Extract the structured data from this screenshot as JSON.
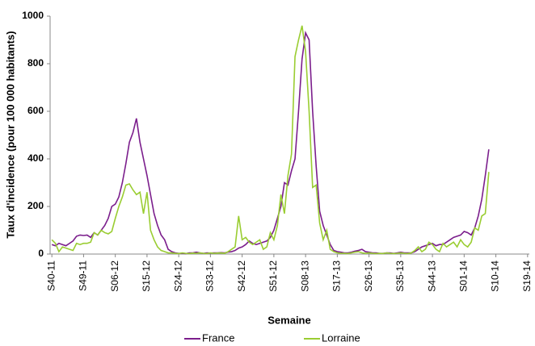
{
  "chart_data": {
    "type": "line",
    "x_label": "Semaine",
    "y_label": "Taux d'incidence (pour 100 000 habitants)",
    "categories": [
      "S40-11",
      null,
      null,
      null,
      null,
      null,
      null,
      null,
      null,
      "S49-11",
      null,
      null,
      null,
      null,
      null,
      null,
      null,
      null,
      "S06-12",
      null,
      null,
      null,
      null,
      null,
      null,
      null,
      null,
      "S15-12",
      null,
      null,
      null,
      null,
      null,
      null,
      null,
      null,
      "S24-12",
      null,
      null,
      null,
      null,
      null,
      null,
      null,
      null,
      "S33-12",
      null,
      null,
      null,
      null,
      null,
      null,
      null,
      null,
      "S42-12",
      null,
      null,
      null,
      null,
      null,
      null,
      null,
      null,
      "S51-12",
      null,
      null,
      null,
      null,
      null,
      null,
      null,
      null,
      "S08-13",
      null,
      null,
      null,
      null,
      null,
      null,
      null,
      null,
      "S17-13",
      null,
      null,
      null,
      null,
      null,
      null,
      null,
      null,
      "S26-13",
      null,
      null,
      null,
      null,
      null,
      null,
      null,
      null,
      "S35-13",
      null,
      null,
      null,
      null,
      null,
      null,
      null,
      null,
      "S44-13",
      null,
      null,
      null,
      null,
      null,
      null,
      null,
      null,
      "S01-14",
      null,
      null,
      null,
      null,
      null,
      null,
      null,
      null,
      "S10-14",
      null,
      null,
      null,
      null,
      null,
      null,
      null,
      null,
      "S19-14"
    ],
    "series": [
      {
        "name": "France",
        "color": "#7b1e8c",
        "values": [
          40,
          35,
          45,
          40,
          35,
          45,
          55,
          75,
          80,
          78,
          80,
          70,
          90,
          80,
          100,
          120,
          150,
          200,
          210,
          240,
          300,
          380,
          470,
          510,
          570,
          470,
          400,
          330,
          250,
          170,
          120,
          80,
          60,
          20,
          10,
          5,
          3,
          3,
          2,
          5,
          5,
          8,
          5,
          3,
          5,
          4,
          5,
          5,
          6,
          5,
          8,
          10,
          15,
          25,
          30,
          40,
          55,
          45,
          40,
          45,
          50,
          55,
          70,
          100,
          150,
          200,
          300,
          290,
          350,
          400,
          600,
          820,
          930,
          900,
          600,
          370,
          180,
          120,
          80,
          40,
          15,
          10,
          8,
          5,
          5,
          8,
          12,
          15,
          20,
          10,
          8,
          5,
          5,
          3,
          3,
          5,
          5,
          3,
          5,
          8,
          5,
          5,
          5,
          10,
          20,
          30,
          35,
          40,
          45,
          35,
          40,
          40,
          50,
          60,
          70,
          75,
          80,
          95,
          90,
          80,
          110,
          160,
          230,
          330,
          440,
          null,
          null,
          null,
          null,
          null,
          null,
          null,
          null,
          null,
          null,
          null
        ]
      },
      {
        "name": "Lorraine",
        "color": "#9acd32",
        "values": [
          60,
          45,
          10,
          30,
          25,
          20,
          15,
          45,
          40,
          45,
          45,
          50,
          90,
          80,
          100,
          90,
          85,
          95,
          150,
          200,
          240,
          290,
          295,
          270,
          250,
          260,
          170,
          260,
          100,
          60,
          30,
          15,
          10,
          5,
          5,
          3,
          2,
          5,
          3,
          2,
          4,
          3,
          5,
          3,
          2,
          5,
          3,
          4,
          5,
          3,
          10,
          20,
          30,
          160,
          60,
          70,
          50,
          40,
          50,
          60,
          20,
          30,
          90,
          60,
          120,
          250,
          170,
          330,
          420,
          830,
          900,
          960,
          850,
          600,
          280,
          290,
          130,
          60,
          100,
          20,
          10,
          5,
          3,
          3,
          2,
          5,
          8,
          10,
          5,
          3,
          5,
          3,
          2,
          3,
          2,
          5,
          3,
          2,
          3,
          5,
          3,
          2,
          5,
          15,
          30,
          10,
          20,
          50,
          40,
          20,
          10,
          45,
          30,
          40,
          50,
          30,
          60,
          40,
          30,
          50,
          110,
          100,
          160,
          170,
          345,
          null,
          null,
          null,
          null,
          null,
          null,
          null,
          null,
          null,
          null,
          null
        ]
      }
    ],
    "ylim": [
      0,
      1000
    ],
    "yticks": [
      0,
      200,
      400,
      600,
      800,
      1000
    ],
    "grid": false
  }
}
